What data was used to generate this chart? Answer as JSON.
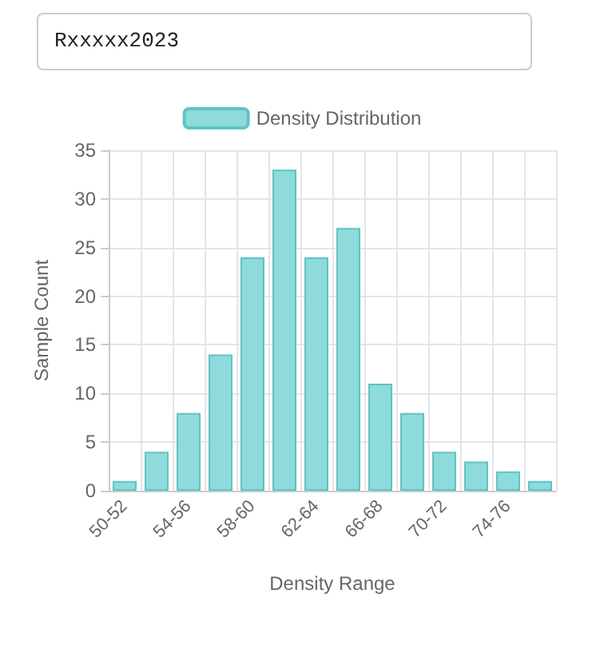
{
  "chart_data": {
    "type": "bar",
    "annotations": [
      "Rxxxxx2023"
    ],
    "categories": [
      "50-52",
      null,
      "54-56",
      null,
      "58-60",
      null,
      "62-64",
      null,
      "66-68",
      null,
      "70-72",
      null,
      "74-76",
      null
    ],
    "series": [
      {
        "name": "Density Distribution",
        "color": "#8fdada",
        "values": [
          1,
          4,
          8,
          14,
          24,
          33,
          24,
          27,
          11,
          8,
          4,
          3,
          2,
          1
        ]
      }
    ],
    "xlabel": "Density Range",
    "ylabel": "Sample Count",
    "ylim": [
      0,
      35
    ],
    "yticks": [
      0,
      5,
      10,
      15,
      20,
      25,
      30,
      35
    ],
    "grid": true,
    "legend": "top"
  }
}
